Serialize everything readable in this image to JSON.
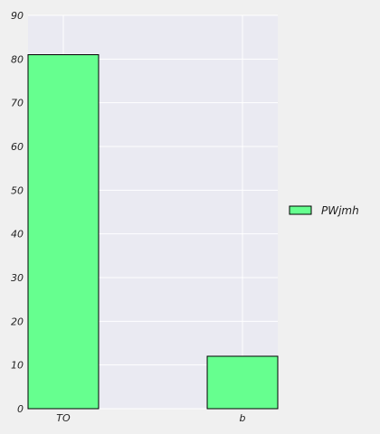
{
  "chart_data": {
    "type": "bar",
    "categories": [
      "TO",
      "b"
    ],
    "series": [
      {
        "name": "PWjmh",
        "values": [
          81,
          12
        ]
      }
    ],
    "title": "",
    "xlabel": "",
    "ylabel": "",
    "ylim": [
      0,
      90
    ],
    "yticks": [
      0,
      10,
      20,
      30,
      40,
      50,
      60,
      70,
      80,
      90
    ],
    "grid": true,
    "legend_position": "right",
    "colors": {
      "bar_fill": "#66ff8f",
      "bar_edge": "#000000",
      "plot_background": "#eaeaf2",
      "grid": "#ffffff",
      "page_background": "#f0f0f0"
    }
  }
}
